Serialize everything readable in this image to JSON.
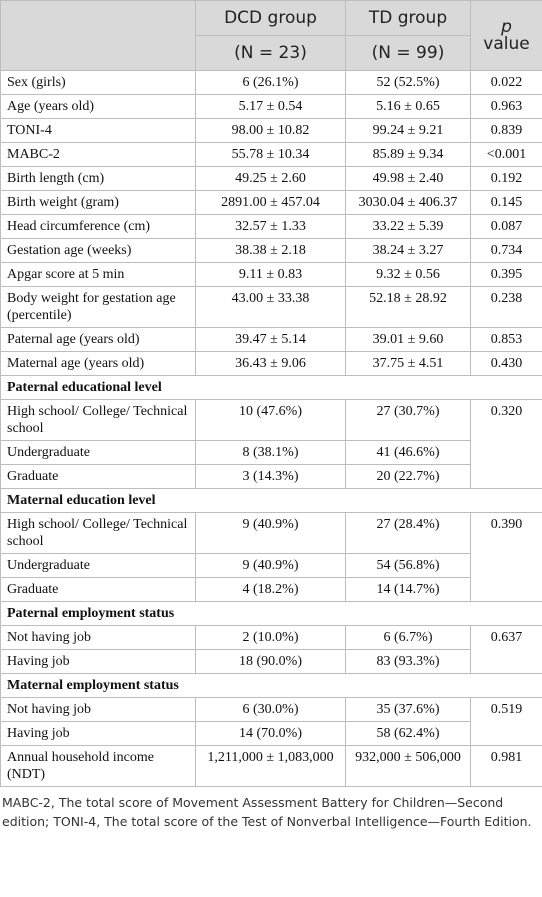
{
  "table": {
    "header": {
      "groups": [
        "DCD group",
        "TD group"
      ],
      "ns": [
        "(N = 23)",
        "(N = 99)"
      ],
      "p": [
        "p",
        "value"
      ]
    },
    "rows": [
      [
        "Sex (girls)",
        "6 (26.1%)",
        "52 (52.5%)",
        "0.022"
      ],
      [
        "Age (years old)",
        "5.17 ± 0.54",
        "5.16 ± 0.65",
        "0.963"
      ],
      [
        "TONI-4",
        "98.00 ± 10.82",
        "99.24 ± 9.21",
        "0.839"
      ],
      [
        "MABC-2",
        "55.78 ± 10.34",
        "85.89 ± 9.34",
        "<0.001"
      ],
      [
        "Birth length (cm)",
        "49.25 ± 2.60",
        "49.98 ± 2.40",
        "0.192"
      ],
      [
        "Birth weight (gram)",
        "2891.00 ± 457.04",
        "3030.04 ± 406.37",
        "0.145"
      ],
      [
        "Head circumference (cm)",
        "32.57 ± 1.33",
        "33.22 ± 5.39",
        "0.087"
      ],
      [
        "Gestation age (weeks)",
        "38.38 ± 2.18",
        "38.24 ± 3.27",
        "0.734"
      ],
      [
        "Apgar score at 5 min",
        "9.11 ± 0.83",
        "9.32 ± 0.56",
        "0.395"
      ],
      [
        "Body weight for gestation age (percentile)",
        "43.00 ± 33.38",
        "52.18 ± 28.92",
        "0.238"
      ],
      [
        "Paternal age (years old)",
        "39.47 ± 5.14",
        "39.01 ± 9.60",
        "0.853"
      ],
      [
        "Maternal age (years old)",
        "36.43 ± 9.06",
        "37.75 ± 4.51",
        "0.430"
      ],
      {
        "section": "Paternal educational level"
      },
      [
        "High school/ College/ Technical school",
        "10 (47.6%)",
        "27 (30.7%)",
        "0.320"
      ],
      [
        "Undergraduate",
        "8 (38.1%)",
        "41 (46.6%)"
      ],
      [
        "Graduate",
        "3 (14.3%)",
        "20 (22.7%)"
      ],
      {
        "section": "Maternal education level"
      },
      [
        "High school/ College/ Technical school",
        "9 (40.9%)",
        "27 (28.4%)",
        "0.390"
      ],
      [
        "Undergraduate",
        "9 (40.9%)",
        "54 (56.8%)"
      ],
      [
        "Graduate",
        "4 (18.2%)",
        "14 (14.7%)"
      ],
      {
        "section": "Paternal employment status"
      },
      [
        "Not having job",
        "2 (10.0%)",
        "6 (6.7%)",
        "0.637"
      ],
      [
        "Having job",
        "18 (90.0%)",
        "83 (93.3%)"
      ],
      {
        "section": "Maternal employment status"
      },
      [
        "Not having job",
        "6 (30.0%)",
        "35 (37.6%)",
        "0.519"
      ],
      [
        "Having job",
        "14 (70.0%)",
        "58 (62.4%)"
      ],
      [
        "Annual household income (NDT)",
        "1,211,000 ± 1,083,000",
        "932,000 ± 506,000",
        "0.981"
      ]
    ],
    "footnote": "MABC-2, The total score of Movement Assessment Battery for Children—Second edition; TONI-4, The total score of the Test of Nonverbal Intelligence—Fourth Edition."
  }
}
